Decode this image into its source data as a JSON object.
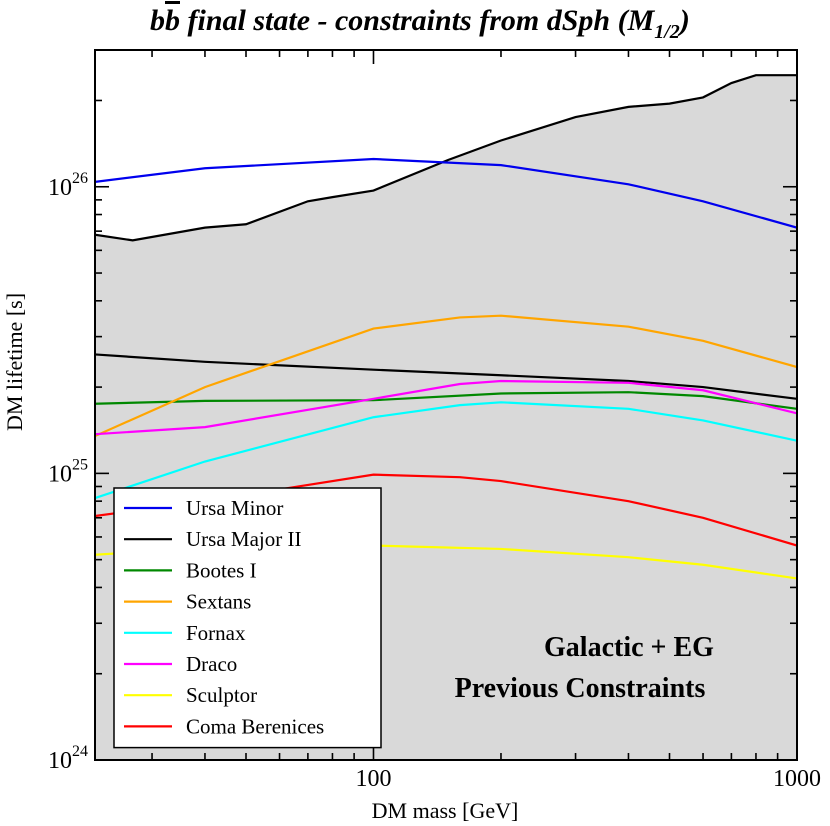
{
  "chart_data": {
    "type": "line",
    "title_parts": {
      "a": "b",
      "b": "b",
      "c": " final state - constraints from dSph (M",
      "sub": "1/2",
      "close": ")"
    },
    "xlabel": "DM mass [GeV]",
    "ylabel": "DM lifetime [s]",
    "xscale": "log",
    "yscale": "log",
    "xlim": [
      22,
      1000
    ],
    "ylim": [
      1e+24,
      3e+26
    ],
    "x_ticks": [
      {
        "value": 100,
        "label": "100"
      },
      {
        "value": 1000,
        "label": "1000"
      }
    ],
    "y_ticks": [
      {
        "value": 1e+24,
        "base": "10",
        "exp": "24"
      },
      {
        "value": 1e+25,
        "base": "10",
        "exp": "25"
      },
      {
        "value": 1e+26,
        "base": "10",
        "exp": "26"
      }
    ],
    "annotation": [
      "Galactic + EG",
      "Previous Constraints"
    ],
    "shaded_region": {
      "name": "Galactic + EG Previous Constraints",
      "color": "#d9d9d9",
      "boundary": [
        [
          22,
          6.8e+25
        ],
        [
          27,
          6.5e+25
        ],
        [
          40,
          7.2e+25
        ],
        [
          50,
          7.4e+25
        ],
        [
          70,
          8.9e+25
        ],
        [
          80,
          9.2e+25
        ],
        [
          100,
          9.7e+25
        ],
        [
          150,
          1.24e+26
        ],
        [
          200,
          1.45e+26
        ],
        [
          300,
          1.75e+26
        ],
        [
          400,
          1.9e+26
        ],
        [
          500,
          1.95e+26
        ],
        [
          600,
          2.05e+26
        ],
        [
          700,
          2.3e+26
        ],
        [
          800,
          2.45e+26
        ],
        [
          1000,
          2.45e+26
        ]
      ]
    },
    "legend_placement": "bottom-left",
    "series": [
      {
        "name": "Ursa Minor",
        "color": "#0000ee",
        "points": [
          [
            22,
            1.04e+26
          ],
          [
            40,
            1.16e+26
          ],
          [
            100,
            1.25e+26
          ],
          [
            200,
            1.19e+26
          ],
          [
            400,
            1.02e+26
          ],
          [
            600,
            8.9e+25
          ],
          [
            1000,
            7.2e+25
          ]
        ]
      },
      {
        "name": "Ursa Major II",
        "color": "#000000",
        "points": [
          [
            22,
            2.6e+25
          ],
          [
            40,
            2.45e+25
          ],
          [
            100,
            2.3e+25
          ],
          [
            200,
            2.2e+25
          ],
          [
            400,
            2.1e+25
          ],
          [
            600,
            2e+25
          ],
          [
            1000,
            1.82e+25
          ]
        ]
      },
      {
        "name": "Bootes I",
        "color": "#008800",
        "points": [
          [
            22,
            1.75e+25
          ],
          [
            40,
            1.79e+25
          ],
          [
            100,
            1.8e+25
          ],
          [
            200,
            1.9e+25
          ],
          [
            400,
            1.92e+25
          ],
          [
            600,
            1.86e+25
          ],
          [
            1000,
            1.68e+25
          ]
        ]
      },
      {
        "name": "Sextans",
        "color": "#ffa500",
        "points": [
          [
            22,
            1.35e+25
          ],
          [
            40,
            2e+25
          ],
          [
            100,
            3.2e+25
          ],
          [
            160,
            3.5e+25
          ],
          [
            200,
            3.55e+25
          ],
          [
            400,
            3.25e+25
          ],
          [
            600,
            2.9e+25
          ],
          [
            1000,
            2.35e+25
          ]
        ]
      },
      {
        "name": "Fornax",
        "color": "#00ffff",
        "points": [
          [
            22,
            8.2e+24
          ],
          [
            40,
            1.1e+25
          ],
          [
            100,
            1.57e+25
          ],
          [
            160,
            1.73e+25
          ],
          [
            200,
            1.77e+25
          ],
          [
            400,
            1.68e+25
          ],
          [
            600,
            1.53e+25
          ],
          [
            1000,
            1.3e+25
          ]
        ]
      },
      {
        "name": "Draco",
        "color": "#ff00ff",
        "points": [
          [
            22,
            1.37e+25
          ],
          [
            40,
            1.45e+25
          ],
          [
            100,
            1.82e+25
          ],
          [
            160,
            2.05e+25
          ],
          [
            200,
            2.1e+25
          ],
          [
            400,
            2.07e+25
          ],
          [
            600,
            1.95e+25
          ],
          [
            1000,
            1.62e+25
          ]
        ]
      },
      {
        "name": "Sculptor",
        "color": "#ffff00",
        "points": [
          [
            22,
            5.2e+24
          ],
          [
            40,
            5.5e+24
          ],
          [
            100,
            5.6e+24
          ],
          [
            200,
            5.45e+24
          ],
          [
            400,
            5.1e+24
          ],
          [
            600,
            4.8e+24
          ],
          [
            1000,
            4.3e+24
          ]
        ]
      },
      {
        "name": "Coma Berenices",
        "color": "#ff0000",
        "points": [
          [
            22,
            7.1e+24
          ],
          [
            40,
            8e+24
          ],
          [
            100,
            9.9e+24
          ],
          [
            160,
            9.7e+24
          ],
          [
            200,
            9.4e+24
          ],
          [
            400,
            8e+24
          ],
          [
            600,
            7e+24
          ],
          [
            1000,
            5.6e+24
          ]
        ]
      }
    ]
  }
}
